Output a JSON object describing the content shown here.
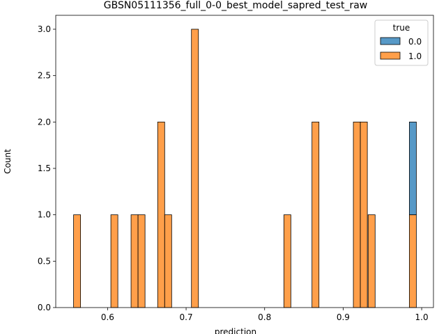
{
  "chart_data": {
    "type": "bar",
    "title": "GBSN05111356_full_0-0_best_model_sapred_test_raw",
    "xlabel": "prediction",
    "ylabel": "Count",
    "xlim": [
      0.534,
      1.015
    ],
    "ylim": [
      0.0,
      3.15
    ],
    "x_ticks": [
      "0.6",
      "0.7",
      "0.8",
      "0.9",
      "1.0"
    ],
    "x_tick_values": [
      0.6,
      0.7,
      0.8,
      0.9,
      1.0
    ],
    "y_ticks": [
      "0.0",
      "0.5",
      "1.0",
      "1.5",
      "2.0",
      "2.5",
      "3.0"
    ],
    "y_tick_values": [
      0.0,
      0.5,
      1.0,
      1.5,
      2.0,
      2.5,
      3.0
    ],
    "stacked": true,
    "legend": {
      "title": "true",
      "placement": "top-right"
    },
    "series": [
      {
        "name": "0.0",
        "color": "#1f77b4",
        "bars": [
          {
            "x0": 0.9843,
            "x1": 0.9932,
            "value": 1
          }
        ]
      },
      {
        "name": "1.0",
        "color": "#ff7f0e",
        "bars": [
          {
            "x0": 0.5567,
            "x1": 0.5656,
            "value": 1
          },
          {
            "x0": 0.6042,
            "x1": 0.6131,
            "value": 1
          },
          {
            "x0": 0.6299,
            "x1": 0.6388,
            "value": 1
          },
          {
            "x0": 0.6388,
            "x1": 0.6477,
            "value": 1
          },
          {
            "x0": 0.6638,
            "x1": 0.6727,
            "value": 2
          },
          {
            "x0": 0.6727,
            "x1": 0.6816,
            "value": 1
          },
          {
            "x0": 0.7068,
            "x1": 0.7157,
            "value": 3
          },
          {
            "x0": 0.8245,
            "x1": 0.8334,
            "value": 1
          },
          {
            "x0": 0.8603,
            "x1": 0.8692,
            "value": 2
          },
          {
            "x0": 0.913,
            "x1": 0.9219,
            "value": 2
          },
          {
            "x0": 0.9219,
            "x1": 0.9308,
            "value": 2
          },
          {
            "x0": 0.9318,
            "x1": 0.9407,
            "value": 1
          },
          {
            "x0": 0.9843,
            "x1": 0.9932,
            "value": 1
          }
        ]
      }
    ]
  }
}
